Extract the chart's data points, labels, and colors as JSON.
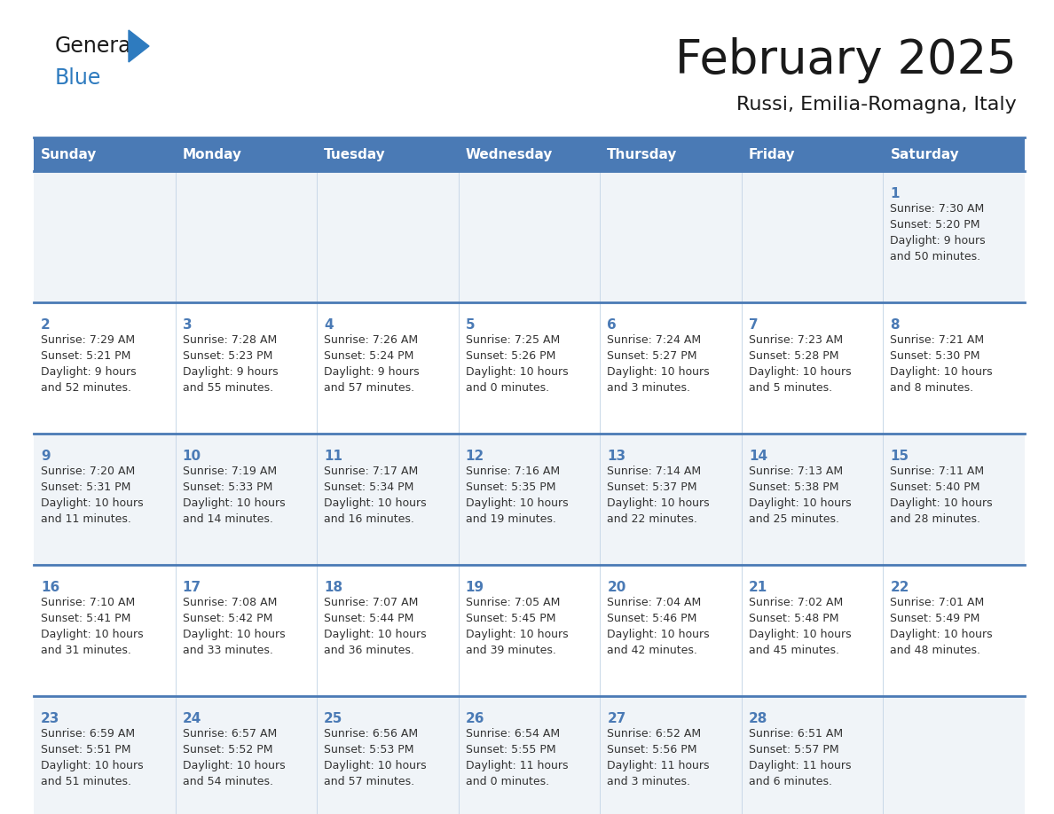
{
  "title": "February 2025",
  "subtitle": "Russi, Emilia-Romagna, Italy",
  "days_of_week": [
    "Sunday",
    "Monday",
    "Tuesday",
    "Wednesday",
    "Thursday",
    "Friday",
    "Saturday"
  ],
  "header_bg": "#4a7ab5",
  "header_text_color": "#ffffff",
  "cell_bg_light": "#f0f4f8",
  "cell_bg_white": "#ffffff",
  "cell_border_top_color": "#4a7ab5",
  "cell_border_inner_color": "#c8d8e8",
  "day_num_color": "#4a7ab5",
  "info_text_color": "#333333",
  "logo_general_color": "#1a1a1a",
  "logo_blue_color": "#2e7bbf",
  "title_color": "#1a1a1a",
  "subtitle_color": "#1a1a1a",
  "weeks": [
    [
      {
        "day": null,
        "info": ""
      },
      {
        "day": null,
        "info": ""
      },
      {
        "day": null,
        "info": ""
      },
      {
        "day": null,
        "info": ""
      },
      {
        "day": null,
        "info": ""
      },
      {
        "day": null,
        "info": ""
      },
      {
        "day": 1,
        "info": "Sunrise: 7:30 AM\nSunset: 5:20 PM\nDaylight: 9 hours\nand 50 minutes."
      }
    ],
    [
      {
        "day": 2,
        "info": "Sunrise: 7:29 AM\nSunset: 5:21 PM\nDaylight: 9 hours\nand 52 minutes."
      },
      {
        "day": 3,
        "info": "Sunrise: 7:28 AM\nSunset: 5:23 PM\nDaylight: 9 hours\nand 55 minutes."
      },
      {
        "day": 4,
        "info": "Sunrise: 7:26 AM\nSunset: 5:24 PM\nDaylight: 9 hours\nand 57 minutes."
      },
      {
        "day": 5,
        "info": "Sunrise: 7:25 AM\nSunset: 5:26 PM\nDaylight: 10 hours\nand 0 minutes."
      },
      {
        "day": 6,
        "info": "Sunrise: 7:24 AM\nSunset: 5:27 PM\nDaylight: 10 hours\nand 3 minutes."
      },
      {
        "day": 7,
        "info": "Sunrise: 7:23 AM\nSunset: 5:28 PM\nDaylight: 10 hours\nand 5 minutes."
      },
      {
        "day": 8,
        "info": "Sunrise: 7:21 AM\nSunset: 5:30 PM\nDaylight: 10 hours\nand 8 minutes."
      }
    ],
    [
      {
        "day": 9,
        "info": "Sunrise: 7:20 AM\nSunset: 5:31 PM\nDaylight: 10 hours\nand 11 minutes."
      },
      {
        "day": 10,
        "info": "Sunrise: 7:19 AM\nSunset: 5:33 PM\nDaylight: 10 hours\nand 14 minutes."
      },
      {
        "day": 11,
        "info": "Sunrise: 7:17 AM\nSunset: 5:34 PM\nDaylight: 10 hours\nand 16 minutes."
      },
      {
        "day": 12,
        "info": "Sunrise: 7:16 AM\nSunset: 5:35 PM\nDaylight: 10 hours\nand 19 minutes."
      },
      {
        "day": 13,
        "info": "Sunrise: 7:14 AM\nSunset: 5:37 PM\nDaylight: 10 hours\nand 22 minutes."
      },
      {
        "day": 14,
        "info": "Sunrise: 7:13 AM\nSunset: 5:38 PM\nDaylight: 10 hours\nand 25 minutes."
      },
      {
        "day": 15,
        "info": "Sunrise: 7:11 AM\nSunset: 5:40 PM\nDaylight: 10 hours\nand 28 minutes."
      }
    ],
    [
      {
        "day": 16,
        "info": "Sunrise: 7:10 AM\nSunset: 5:41 PM\nDaylight: 10 hours\nand 31 minutes."
      },
      {
        "day": 17,
        "info": "Sunrise: 7:08 AM\nSunset: 5:42 PM\nDaylight: 10 hours\nand 33 minutes."
      },
      {
        "day": 18,
        "info": "Sunrise: 7:07 AM\nSunset: 5:44 PM\nDaylight: 10 hours\nand 36 minutes."
      },
      {
        "day": 19,
        "info": "Sunrise: 7:05 AM\nSunset: 5:45 PM\nDaylight: 10 hours\nand 39 minutes."
      },
      {
        "day": 20,
        "info": "Sunrise: 7:04 AM\nSunset: 5:46 PM\nDaylight: 10 hours\nand 42 minutes."
      },
      {
        "day": 21,
        "info": "Sunrise: 7:02 AM\nSunset: 5:48 PM\nDaylight: 10 hours\nand 45 minutes."
      },
      {
        "day": 22,
        "info": "Sunrise: 7:01 AM\nSunset: 5:49 PM\nDaylight: 10 hours\nand 48 minutes."
      }
    ],
    [
      {
        "day": 23,
        "info": "Sunrise: 6:59 AM\nSunset: 5:51 PM\nDaylight: 10 hours\nand 51 minutes."
      },
      {
        "day": 24,
        "info": "Sunrise: 6:57 AM\nSunset: 5:52 PM\nDaylight: 10 hours\nand 54 minutes."
      },
      {
        "day": 25,
        "info": "Sunrise: 6:56 AM\nSunset: 5:53 PM\nDaylight: 10 hours\nand 57 minutes."
      },
      {
        "day": 26,
        "info": "Sunrise: 6:54 AM\nSunset: 5:55 PM\nDaylight: 11 hours\nand 0 minutes."
      },
      {
        "day": 27,
        "info": "Sunrise: 6:52 AM\nSunset: 5:56 PM\nDaylight: 11 hours\nand 3 minutes."
      },
      {
        "day": 28,
        "info": "Sunrise: 6:51 AM\nSunset: 5:57 PM\nDaylight: 11 hours\nand 6 minutes."
      },
      {
        "day": null,
        "info": ""
      }
    ]
  ]
}
